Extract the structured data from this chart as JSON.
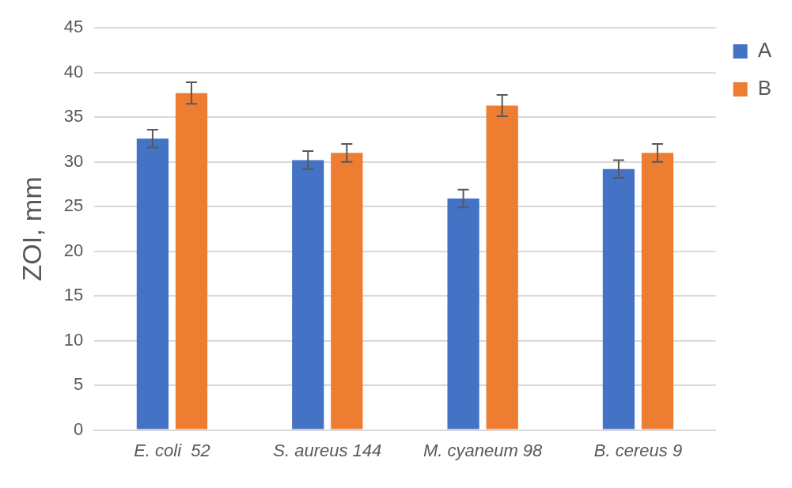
{
  "chart_data": {
    "type": "bar",
    "ylabel": "ZOI, mm",
    "categories": [
      "E. coli  52",
      "S. aureus 144",
      "M. cyaneum 98",
      "B. cereus 9"
    ],
    "series": [
      {
        "name": "A",
        "color": "#4472c4",
        "values": [
          32.6,
          30.2,
          25.9,
          29.2
        ],
        "errors": [
          1.0,
          1.0,
          1.0,
          1.0
        ]
      },
      {
        "name": "B",
        "color": "#ed7d31",
        "values": [
          37.7,
          31.0,
          36.3,
          31.0
        ],
        "errors": [
          1.2,
          1.0,
          1.2,
          1.0
        ]
      }
    ],
    "ylim": [
      0,
      45
    ],
    "yticks": [
      0,
      5,
      10,
      15,
      20,
      25,
      30,
      35,
      40,
      45
    ],
    "grid": "y",
    "legend": "top right"
  }
}
